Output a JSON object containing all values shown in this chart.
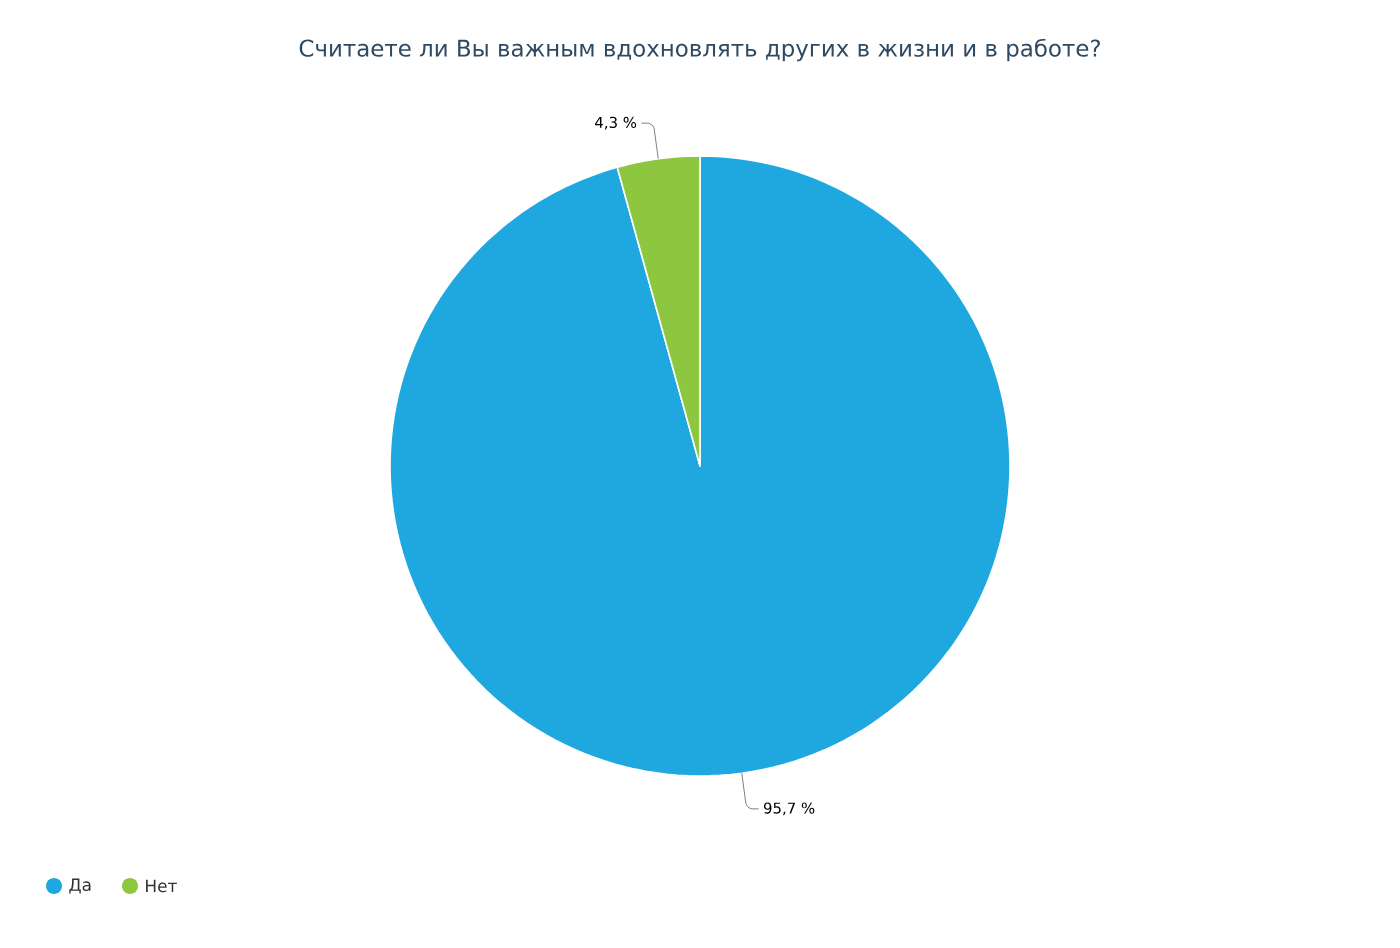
{
  "chart_data": {
    "type": "pie",
    "title": "Считаете ли Вы важным вдохновлять других в жизни и в работе?",
    "categories": [
      "Да",
      "Нет"
    ],
    "values": [
      95.7,
      4.3
    ],
    "colors": [
      "#1fa8e0",
      "#8dc63f"
    ],
    "value_labels": [
      "95,7 %",
      "4,3 %"
    ],
    "legend": "bottom left"
  }
}
